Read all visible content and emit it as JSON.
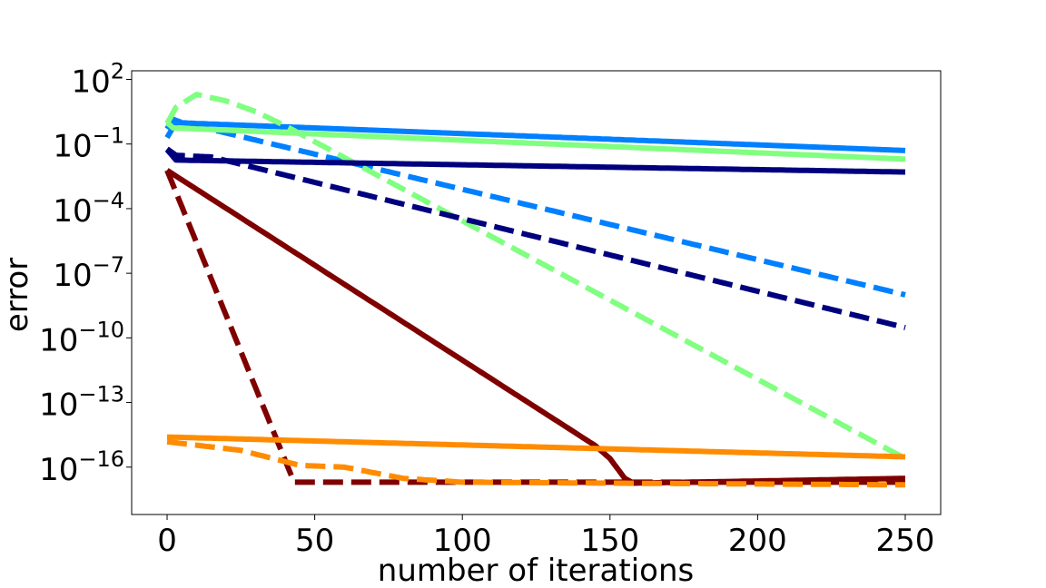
{
  "chart_data": {
    "type": "line",
    "title": "",
    "xlabel": "number of iterations",
    "ylabel": "error",
    "xlim": [
      -12,
      262
    ],
    "ylim_log10": [
      -18.2,
      2.4
    ],
    "yscale": "log",
    "grid": false,
    "x_ticks": [
      0,
      50,
      100,
      150,
      200,
      250
    ],
    "x_tick_labels": [
      "0",
      "50",
      "100",
      "150",
      "200",
      "250"
    ],
    "y_ticks": [
      {
        "base": "10",
        "exp": "2",
        "log": 2
      },
      {
        "base": "10",
        "exp": "−1",
        "log": -1
      },
      {
        "base": "10",
        "exp": "−4",
        "log": -4
      },
      {
        "base": "10",
        "exp": "−7",
        "log": -7
      },
      {
        "base": "10",
        "exp": "−10",
        "log": -10
      },
      {
        "base": "10",
        "exp": "−13",
        "log": -13
      },
      {
        "base": "10",
        "exp": "−16",
        "log": -16
      }
    ],
    "series": [
      {
        "color": "#0080ff",
        "style": "solid",
        "x": [
          0,
          3,
          10,
          250
        ],
        "y": [
          0.2,
          1.0,
          0.9,
          0.05
        ]
      },
      {
        "color": "#0080ff",
        "style": "dashed",
        "x": [
          0,
          2,
          5,
          250
        ],
        "y": [
          0.5,
          1.4,
          1.0,
          1e-08
        ]
      },
      {
        "color": "#80ff80",
        "style": "solid",
        "x": [
          0,
          2,
          250
        ],
        "y": [
          1.0,
          0.56,
          0.02
        ]
      },
      {
        "color": "#80ff80",
        "style": "dashed",
        "x": [
          0,
          3,
          10,
          20,
          30,
          40,
          250
        ],
        "y": [
          0.9,
          5.0,
          20,
          10,
          3.2,
          0.7,
          2.5e-16
        ]
      },
      {
        "color": "#00007f",
        "style": "solid",
        "x": [
          0,
          3,
          250
        ],
        "y": [
          0.055,
          0.018,
          0.005
        ]
      },
      {
        "color": "#00007f",
        "style": "dashed",
        "x": [
          0,
          3,
          15,
          250
        ],
        "y": [
          0.06,
          0.03,
          0.025,
          3e-10
        ]
      },
      {
        "color": "#7f0000",
        "style": "solid",
        "x": [
          0,
          145,
          150,
          155,
          158,
          250
        ],
        "y": [
          0.006,
          1e-15,
          2.5e-16,
          3e-17,
          1.8e-17,
          3e-17
        ]
      },
      {
        "color": "#7f0000",
        "style": "dashed",
        "x": [
          0,
          43,
          250
        ],
        "y": [
          0.006,
          2e-17,
          2e-17
        ]
      },
      {
        "color": "#ff8c00",
        "style": "solid",
        "x": [
          0,
          250
        ],
        "y": [
          2.5e-15,
          3e-16
        ]
      },
      {
        "color": "#ff8c00",
        "style": "dashed",
        "x": [
          0,
          25,
          45,
          60,
          80,
          100,
          150,
          250
        ],
        "y": [
          1.5e-15,
          6e-16,
          1.2e-16,
          1e-16,
          3e-17,
          2e-17,
          1.8e-17,
          1.5e-17
        ]
      }
    ]
  }
}
